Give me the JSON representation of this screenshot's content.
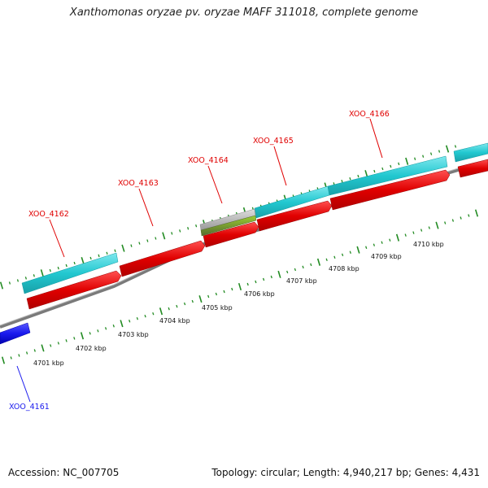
{
  "header": {
    "title": "Xanthomonas oryzae pv. oryzae MAFF 311018, complete genome"
  },
  "footer": {
    "accession": "Accession: NC_007705",
    "summary": "Topology: circular; Length: 4,940,217 bp; Genes: 4,431"
  },
  "genes": [
    {
      "id": "XOO_4161",
      "strand": "minus",
      "color": "#1a1aee"
    },
    {
      "id": "XOO_4162",
      "strand": "plus",
      "color": "#e00000"
    },
    {
      "id": "XOO_4163",
      "strand": "plus",
      "color": "#e00000"
    },
    {
      "id": "XOO_4164",
      "strand": "plus",
      "color": "#e00000"
    },
    {
      "id": "XOO_4165",
      "strand": "plus",
      "color": "#e00000"
    },
    {
      "id": "XOO_4166",
      "strand": "plus",
      "color": "#e00000"
    }
  ],
  "kbp_ticks": [
    "4701 kbp",
    "4702 kbp",
    "4703 kbp",
    "4704 kbp",
    "4705 kbp",
    "4706 kbp",
    "4707 kbp",
    "4708 kbp",
    "4709 kbp",
    "4710 kbp"
  ],
  "colors": {
    "cds": "#e00000",
    "cds_minus": "#1a1aee",
    "protein": "#22c8d0",
    "misc": "#6b8e23",
    "backbone": "#888888",
    "tick": "#228b22"
  }
}
